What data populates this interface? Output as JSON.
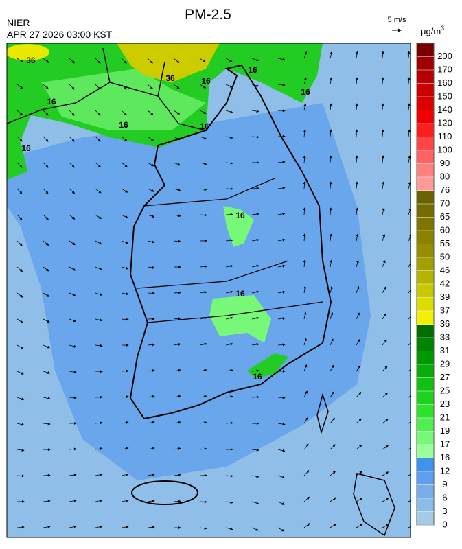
{
  "header": {
    "title": "PM-2.5",
    "agency": "NIER",
    "timestamp": "APR 27 2026 03:00 KST"
  },
  "wind_scale": {
    "label": "5 m/s"
  },
  "colorbar": {
    "unit": "μg/m",
    "unit_exponent": "3",
    "ticks": [
      0,
      3,
      6,
      9,
      12,
      16,
      17,
      19,
      21,
      23,
      25,
      27,
      29,
      31,
      33,
      36,
      37,
      39,
      42,
      46,
      50,
      55,
      60,
      65,
      70,
      76,
      80,
      90,
      100,
      110,
      120,
      140,
      150,
      160,
      170,
      200
    ],
    "colors": [
      "#a2cbe6",
      "#8cbde8",
      "#78afea",
      "#5e9fef",
      "#3f92ee",
      "#9cff9c",
      "#78f878",
      "#50ee50",
      "#2ee22e",
      "#1ed21e",
      "#12c012",
      "#08ac08",
      "#009800",
      "#008400",
      "#006e00",
      "#f0f000",
      "#dcdc00",
      "#c8c800",
      "#b4b400",
      "#a2a000",
      "#968e00",
      "#8a8200",
      "#7e7600",
      "#746c00",
      "#6a6200",
      "#ff9a9a",
      "#ff8080",
      "#ff6464",
      "#ff4646",
      "#ff1e1e",
      "#f00000",
      "#dc0000",
      "#c80000",
      "#b40000",
      "#a00000",
      "#780000"
    ]
  },
  "contour_labels": [
    "36",
    "36",
    "16",
    "16",
    "16",
    "16",
    "16",
    "16",
    "16",
    "16",
    "16",
    "16"
  ]
}
